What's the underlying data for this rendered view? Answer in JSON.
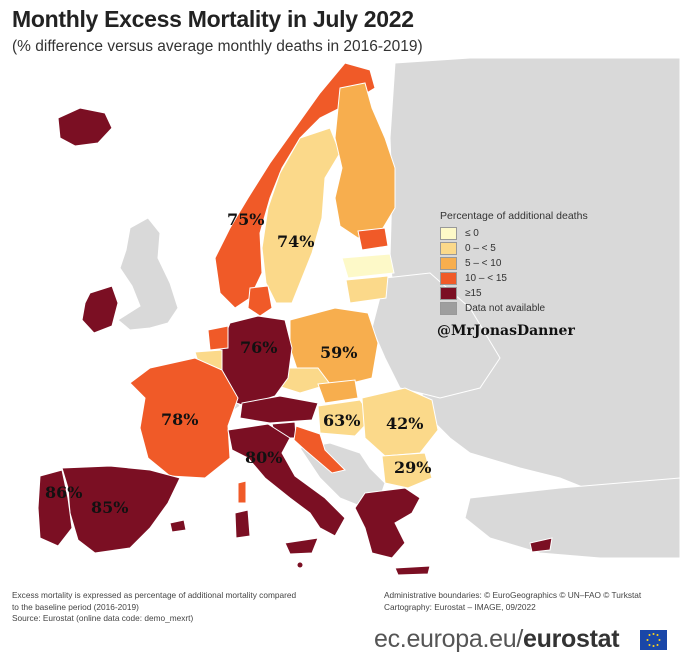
{
  "header": {
    "title": "Monthly Excess Mortality in July 2022",
    "subtitle": "(% difference versus average monthly deaths in 2016-2019)"
  },
  "legend": {
    "title": "Percentage of additional deaths",
    "items": [
      {
        "label": "≤ 0",
        "color": "#fdf9c8"
      },
      {
        "label": "0 – < 5",
        "color": "#fbd98a"
      },
      {
        "label": "5 – < 10",
        "color": "#f7ae4e"
      },
      {
        "label": "10 – < 15",
        "color": "#f05a28"
      },
      {
        "label": "≥15",
        "color": "#7b0f23"
      },
      {
        "label": "Data not available",
        "color": "#9e9e9e"
      }
    ]
  },
  "watermark": "@MrJonasDanner",
  "annotations": {
    "norway": "75%",
    "sweden": "74%",
    "germany": "76%",
    "poland": "59%",
    "france": "78%",
    "hungary": "63%",
    "romania": "42%",
    "italy": "80%",
    "bulgaria": "29%",
    "portugal": "86%",
    "spain": "85%"
  },
  "footer": {
    "note_line1": "Excess mortality is expressed as percentage of additional mortality compared",
    "note_line2": "to the baseline period (2016-2019)",
    "source": "Source: Eurostat (online data code: demo_mexrt)",
    "boundaries": "Administrative boundaries: © EuroGeographics © UN–FAO © Turkstat",
    "cartography": "Cartography: Eurostat – IMAGE, 09/2022"
  },
  "brand": {
    "domain": "ec.europa.eu/",
    "name": "eurostat"
  },
  "colors": {
    "non_eu": "#d9d9d9",
    "le0": "#fdf9c8",
    "lt5": "#fbd98a",
    "lt10": "#f7ae4e",
    "lt15": "#f05a28",
    "ge15": "#7b0f23"
  }
}
